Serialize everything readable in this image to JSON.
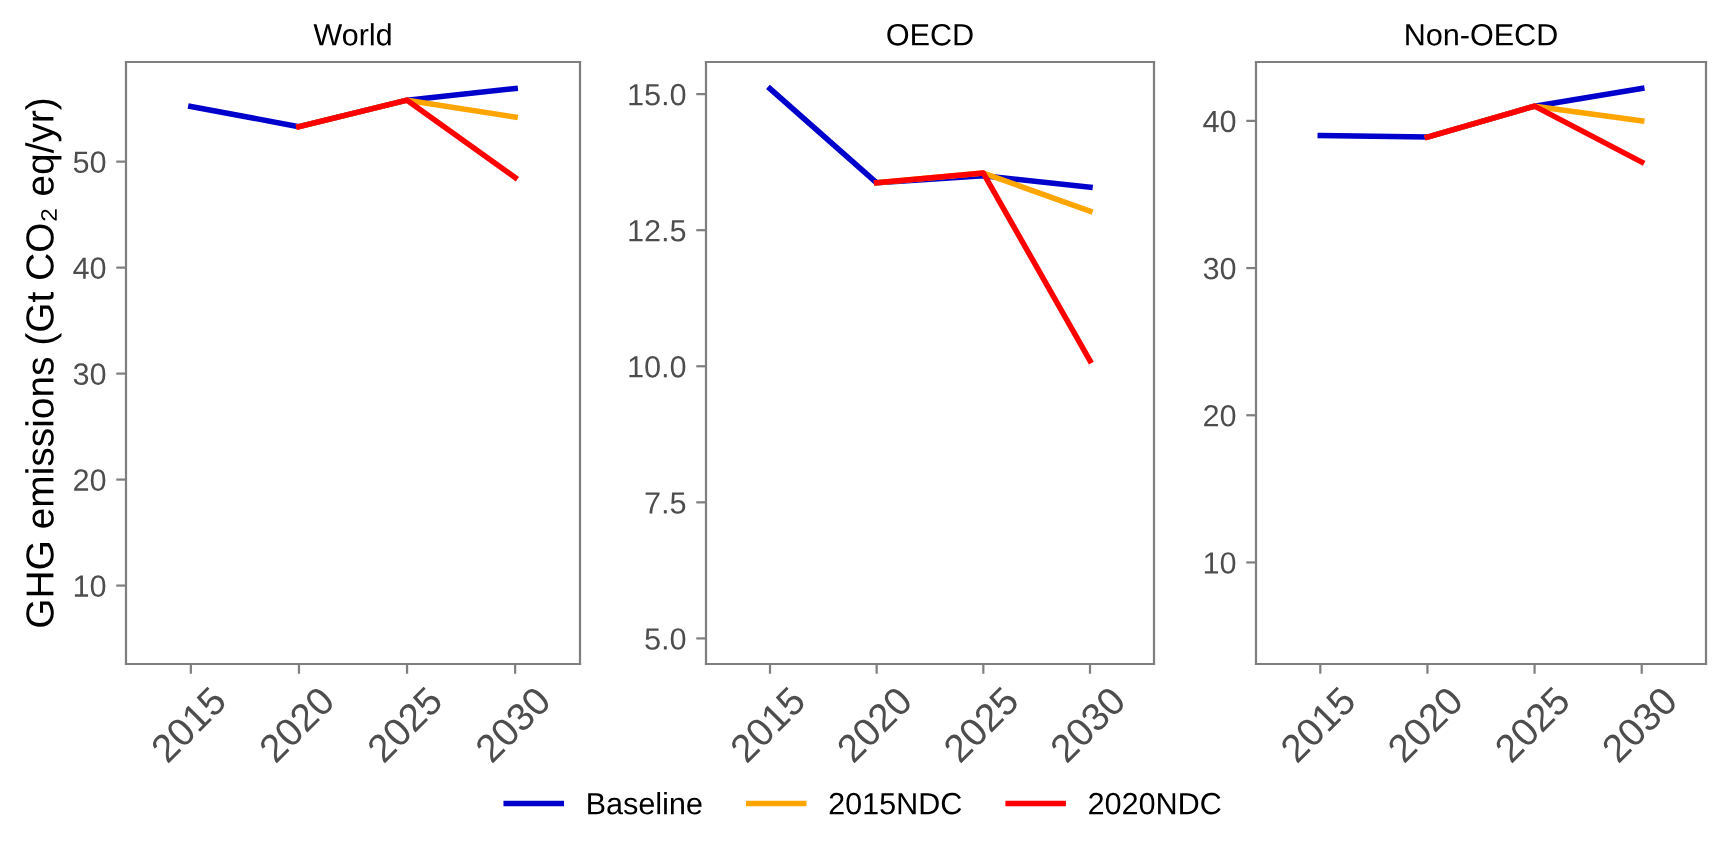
{
  "chart_data": [
    {
      "type": "line",
      "title": "World",
      "ylabel": "GHG emissions (Gt CO₂ eq/yr)",
      "x": [
        2015,
        2020,
        2025,
        2030
      ],
      "xlim": [
        2012,
        2033
      ],
      "xticks": [
        2015,
        2020,
        2025,
        2030
      ],
      "ylim": [
        2.6,
        59.4
      ],
      "yticks": [
        10,
        20,
        30,
        40,
        50
      ],
      "grid": false,
      "line_style": "solid",
      "legend": "bottom",
      "series": [
        {
          "name": "Baseline",
          "color": "#0000cc",
          "values": [
            55.2,
            53.3,
            55.8,
            56.9
          ]
        },
        {
          "name": "2015NDC",
          "color": "#ffa500",
          "values": [
            null,
            53.3,
            55.8,
            54.2
          ]
        },
        {
          "name": "2020NDC",
          "color": "#ff0000",
          "values": [
            null,
            53.3,
            55.8,
            48.5
          ]
        }
      ]
    },
    {
      "type": "line",
      "title": "OECD",
      "x": [
        2015,
        2020,
        2025,
        2030
      ],
      "xlim": [
        2012,
        2033
      ],
      "xticks": [
        2015,
        2020,
        2025,
        2030
      ],
      "ylim": [
        4.53,
        15.59
      ],
      "yticks": [
        {
          "value": 5,
          "label": "5.0"
        },
        7.5,
        {
          "value": 10,
          "label": "10.0"
        },
        12.5,
        {
          "value": 15,
          "label": "15.0"
        }
      ],
      "grid": false,
      "line_style": "solid",
      "series": [
        {
          "color": "#0000cc",
          "values": [
            15.1,
            13.37,
            13.5,
            13.29
          ]
        },
        {
          "color": "#ffa500",
          "values": [
            null,
            13.37,
            13.55,
            12.85
          ]
        },
        {
          "color": "#ff0000",
          "values": [
            null,
            13.37,
            13.55,
            10.1
          ]
        }
      ]
    },
    {
      "type": "line",
      "title": "Non-OECD",
      "x": [
        2015,
        2020,
        2025,
        2030
      ],
      "xlim": [
        2012,
        2033
      ],
      "xticks": [
        2015,
        2020,
        2025,
        2030
      ],
      "ylim": [
        3.1,
        44
      ],
      "yticks": [
        10,
        20,
        30,
        40
      ],
      "grid": false,
      "line_style": "solid",
      "series": [
        {
          "color": "#0000cc",
          "values": [
            39.0,
            38.9,
            41.0,
            42.2
          ]
        },
        {
          "color": "#ffa500",
          "values": [
            null,
            38.9,
            41.0,
            40.0
          ]
        },
        {
          "color": "#ff0000",
          "values": [
            null,
            38.9,
            41.0,
            37.2
          ]
        }
      ]
    }
  ]
}
